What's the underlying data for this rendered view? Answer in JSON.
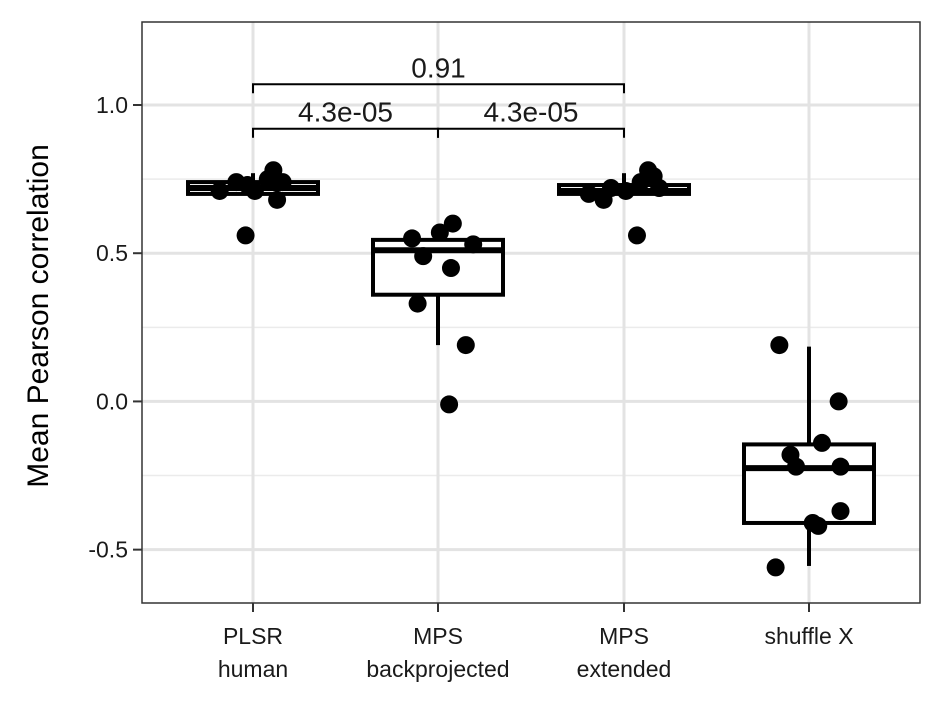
{
  "chart_data": {
    "type": "boxplot",
    "title": "",
    "xlabel": "",
    "ylabel": "Mean Pearson correlation",
    "ylim": [
      -0.68,
      1.28
    ],
    "yticks": [
      1.0,
      0.5,
      0.0,
      -0.5
    ],
    "ytick_labels": [
      "1.0",
      "0.5",
      "0.0",
      "-0.5"
    ],
    "grid": true,
    "categories": [
      {
        "line1": "PLSR",
        "line2": "human"
      },
      {
        "line1": "MPS",
        "line2": "backprojected"
      },
      {
        "line1": "MPS",
        "line2": "extended"
      },
      {
        "line1": "shuffle X",
        "line2": ""
      }
    ],
    "boxes": [
      {
        "q1": 0.7,
        "median": 0.72,
        "q3": 0.74,
        "whisker_low": 0.7,
        "whisker_high": 0.77
      },
      {
        "q1": 0.36,
        "median": 0.51,
        "q3": 0.545,
        "whisker_low": 0.19,
        "whisker_high": 0.545
      },
      {
        "q1": 0.7,
        "median": 0.71,
        "q3": 0.73,
        "whisker_low": 0.7,
        "whisker_high": 0.77
      },
      {
        "q1": -0.41,
        "median": -0.225,
        "q3": -0.145,
        "whisker_low": -0.555,
        "whisker_high": 0.185
      }
    ],
    "points": [
      [
        [
          -0.18,
          0.71
        ],
        [
          -0.09,
          0.74
        ],
        [
          -0.03,
          0.73
        ],
        [
          0.01,
          0.71
        ],
        [
          0.08,
          0.75
        ],
        [
          0.11,
          0.78
        ],
        [
          0.16,
          0.74
        ],
        [
          0.13,
          0.68
        ],
        [
          -0.04,
          0.56
        ]
      ],
      [
        [
          -0.14,
          0.55
        ],
        [
          -0.08,
          0.49
        ],
        [
          0.01,
          0.57
        ],
        [
          0.08,
          0.6
        ],
        [
          0.19,
          0.53
        ],
        [
          0.07,
          0.45
        ],
        [
          -0.11,
          0.33
        ],
        [
          0.15,
          0.19
        ],
        [
          0.06,
          -0.01
        ]
      ],
      [
        [
          -0.19,
          0.7
        ],
        [
          -0.11,
          0.68
        ],
        [
          -0.07,
          0.72
        ],
        [
          0.01,
          0.71
        ],
        [
          0.09,
          0.74
        ],
        [
          0.13,
          0.78
        ],
        [
          0.16,
          0.76
        ],
        [
          0.19,
          0.72
        ],
        [
          0.07,
          0.56
        ]
      ],
      [
        [
          -0.16,
          0.19
        ],
        [
          0.16,
          0.0
        ],
        [
          0.07,
          -0.14
        ],
        [
          -0.1,
          -0.18
        ],
        [
          -0.07,
          -0.22
        ],
        [
          0.17,
          -0.22
        ],
        [
          0.02,
          -0.41
        ],
        [
          0.17,
          -0.37
        ],
        [
          0.05,
          -0.42
        ],
        [
          -0.18,
          -0.56
        ]
      ]
    ],
    "significance": [
      {
        "from": 0,
        "to": 2,
        "y": 1.07,
        "label": "0.91"
      },
      {
        "from": 0,
        "to": 1,
        "y": 0.92,
        "label": "4.3e-05"
      },
      {
        "from": 1,
        "to": 2,
        "y": 0.92,
        "label": "4.3e-05"
      }
    ]
  }
}
